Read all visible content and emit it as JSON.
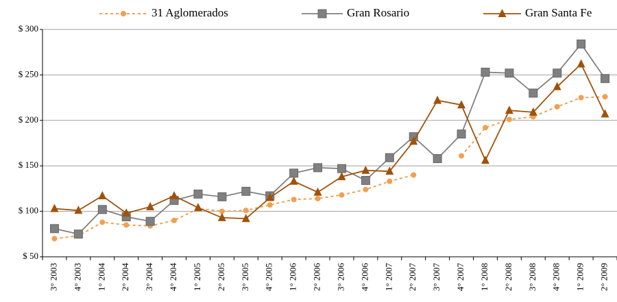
{
  "chart_data": {
    "type": "line",
    "categories": [
      "3° 2003",
      "4° 2003",
      "1° 2004",
      "2° 2004",
      "3° 2004",
      "4° 2004",
      "1° 2005",
      "2° 2005",
      "3° 2005",
      "4° 2005",
      "1° 2006",
      "2° 2006",
      "3° 2006",
      "4° 2006",
      "1° 2007",
      "2° 2007",
      "3° 2007",
      "4° 2007",
      "1° 2008",
      "2° 2008",
      "3° 2008",
      "4° 2008",
      "1° 2009",
      "2° 2009"
    ],
    "series": [
      {
        "name": "31 Aglomerados",
        "color": "#f0a050",
        "marker": "circle",
        "dashed": true,
        "values": [
          70,
          73,
          88,
          85,
          84,
          90,
          103,
          100,
          101,
          107,
          113,
          114,
          118,
          124,
          133,
          140,
          null,
          161,
          192,
          201,
          204,
          215,
          225,
          226
        ]
      },
      {
        "name": "Gran Rosario",
        "color": "#808080",
        "marker": "square",
        "dashed": false,
        "values": [
          81,
          75,
          102,
          94,
          89,
          112,
          119,
          116,
          122,
          117,
          142,
          148,
          147,
          134,
          159,
          182,
          158,
          185,
          253,
          252,
          230,
          252,
          284,
          246
        ]
      },
      {
        "name": "Gran Santa Fe",
        "color": "#a0520a",
        "marker": "triangle",
        "dashed": false,
        "values": [
          103,
          101,
          117,
          98,
          105,
          117,
          104,
          93,
          92,
          115,
          133,
          121,
          138,
          145,
          144,
          177,
          222,
          217,
          156,
          211,
          209,
          237,
          262,
          207
        ]
      }
    ],
    "ylim": [
      50,
      300
    ],
    "yticks": [
      {
        "value": 50,
        "label": "$ 50"
      },
      {
        "value": 100,
        "label": "$ 100"
      },
      {
        "value": 150,
        "label": "$ 150"
      },
      {
        "value": 200,
        "label": "$ 200"
      },
      {
        "value": 250,
        "label": "$ 250"
      },
      {
        "value": 300,
        "label": "$ 300"
      }
    ],
    "grid": true,
    "legend": "top"
  }
}
